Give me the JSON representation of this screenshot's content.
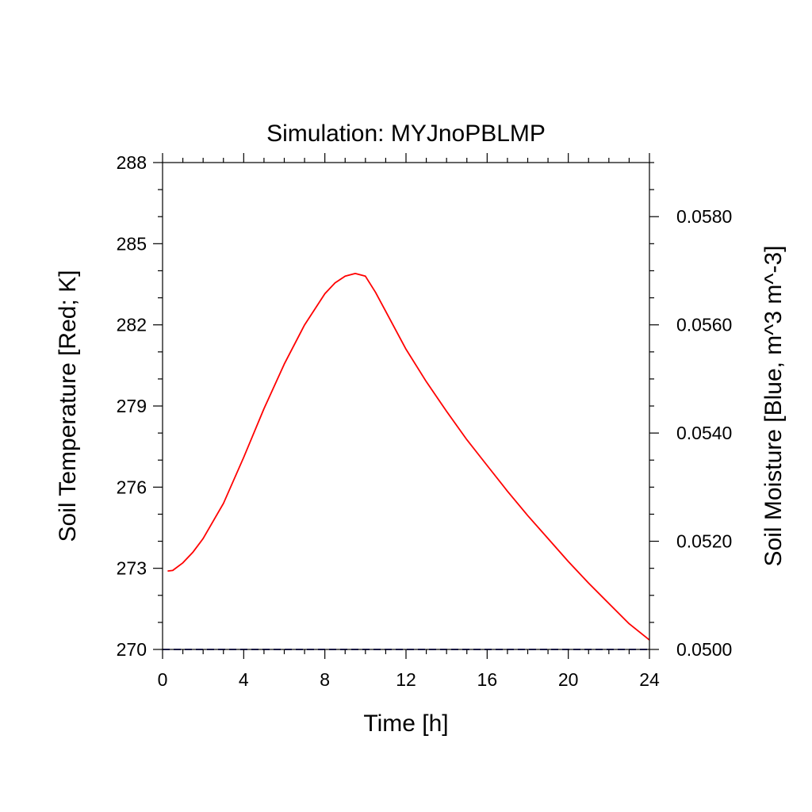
{
  "chart_data": {
    "type": "line",
    "title": "Simulation: MYJnoPBLMP",
    "xlabel": "Time [h]",
    "ylabel_left": "Soil Temperature [Red; K]",
    "ylabel_right": "Soil Moisture [Blue, m^3 m^-3]",
    "xlim": [
      0,
      24
    ],
    "ylim_left": [
      270,
      288
    ],
    "ylim_right": [
      0.05,
      0.059
    ],
    "x_ticks": [
      "0",
      "4",
      "8",
      "12",
      "16",
      "20",
      "24"
    ],
    "y_left_ticks": [
      "270",
      "273",
      "276",
      "279",
      "282",
      "285",
      "288"
    ],
    "y_right_ticks": [
      "0.0500",
      "0.0520",
      "0.0540",
      "0.0560",
      "0.0580"
    ],
    "grid": false,
    "series": [
      {
        "axis": "left",
        "color": "#ff0000",
        "x": [
          0.25,
          0.5,
          1,
          1.5,
          2,
          3,
          4,
          5,
          6,
          7,
          8,
          8.5,
          9,
          9.5,
          10,
          10.5,
          11,
          12,
          13,
          14,
          15,
          16,
          17,
          18,
          19,
          20,
          21,
          22,
          23,
          24
        ],
        "values": [
          272.9,
          272.92,
          273.2,
          273.6,
          274.1,
          275.4,
          277.1,
          278.9,
          280.55,
          282.0,
          283.15,
          283.55,
          283.8,
          283.9,
          283.8,
          283.2,
          282.5,
          281.1,
          279.9,
          278.8,
          277.75,
          276.8,
          275.85,
          274.95,
          274.1,
          273.25,
          272.45,
          271.7,
          270.95,
          270.35
        ]
      },
      {
        "axis": "right",
        "color": "#00008b",
        "dashed": true,
        "x": [
          0,
          24
        ],
        "values": [
          0.05,
          0.05
        ]
      }
    ]
  }
}
